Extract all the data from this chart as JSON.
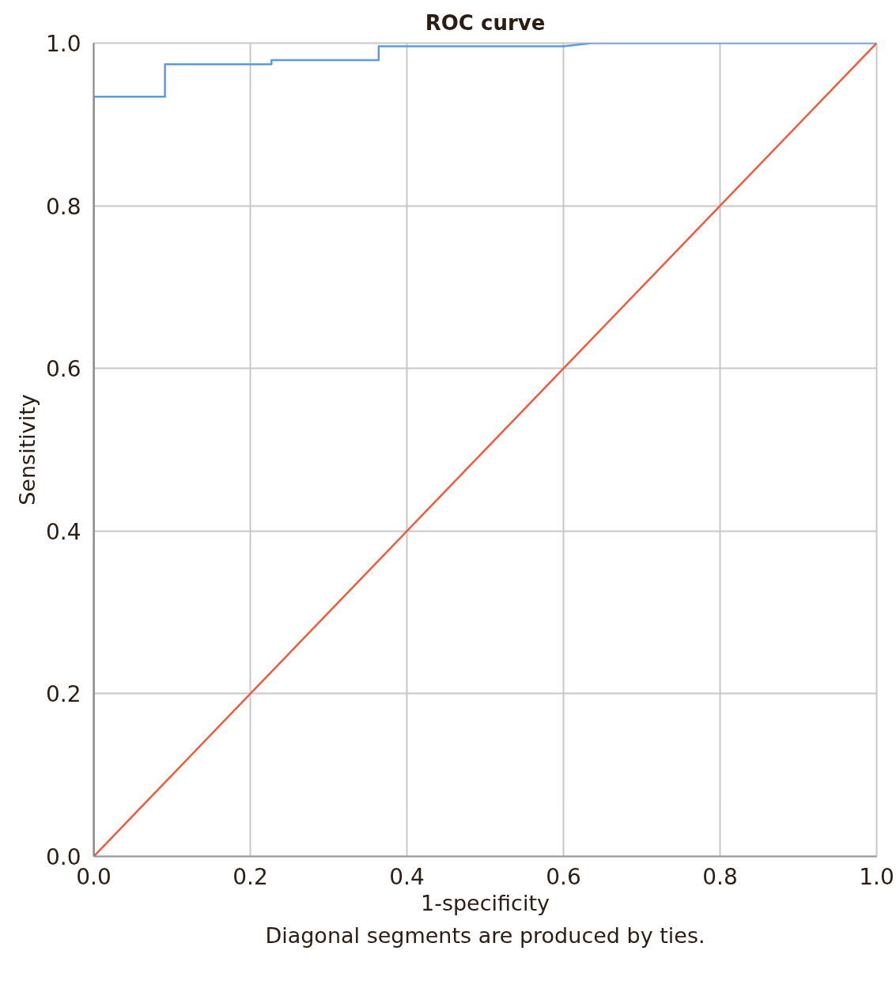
{
  "chart_data": {
    "type": "line",
    "title": "ROC curve",
    "xlabel": "1-specificity",
    "ylabel": "Sensitivity",
    "annotations": [
      "Diagonal segments are produced by ties."
    ],
    "series": [
      {
        "color": "#5a9ae6",
        "x": [
          0,
          0,
          0.091,
          0.091,
          0.227,
          0.227,
          0.364,
          0.364,
          0.6,
          0.636,
          1.0
        ],
        "values": [
          0,
          0.934,
          0.934,
          0.974,
          0.974,
          0.979,
          0.979,
          0.996,
          0.996,
          1.0,
          1.0
        ]
      },
      {
        "color": "#ee5a3c",
        "x": [
          0,
          1.0
        ],
        "values": [
          0,
          1.0
        ]
      }
    ],
    "xlim": [
      0,
      1.0
    ],
    "ylim": [
      0,
      1.0
    ],
    "xticks": [
      {
        "value": 0,
        "label": "0.0"
      },
      0.2,
      0.4,
      0.6,
      0.8,
      {
        "value": 1.0,
        "label": "1.0"
      }
    ],
    "yticks": [
      {
        "value": 0,
        "label": "0.0"
      },
      0.2,
      0.4,
      0.6,
      0.8,
      {
        "value": 1.0,
        "label": "1.0"
      }
    ],
    "grid": true,
    "line_style": "solid"
  }
}
